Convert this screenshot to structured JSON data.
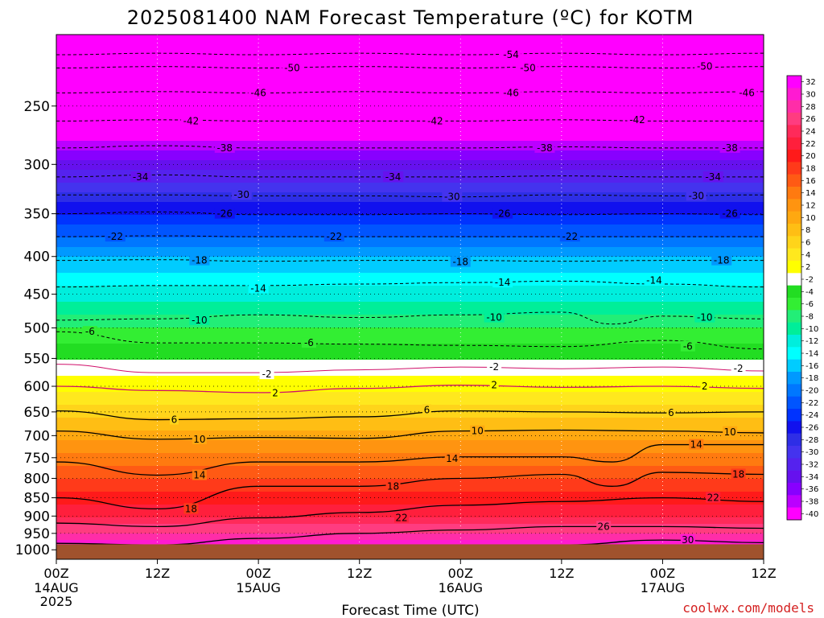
{
  "chart_data": {
    "type": "heatmap",
    "title": "2025081400 NAM Forecast Temperature (ºC) for KOTM",
    "xlabel": "Forecast Time (UTC)",
    "credit": "coolwx.com/models",
    "x_ticks": [
      {
        "hours": 0,
        "label": "00Z",
        "sub": "14AUG",
        "sub2": "2025"
      },
      {
        "hours": 12,
        "label": "12Z"
      },
      {
        "hours": 24,
        "label": "00Z",
        "sub": "15AUG"
      },
      {
        "hours": 36,
        "label": "12Z"
      },
      {
        "hours": 48,
        "label": "00Z",
        "sub": "16AUG"
      },
      {
        "hours": 60,
        "label": "12Z"
      },
      {
        "hours": 72,
        "label": "00Z",
        "sub": "17AUG"
      },
      {
        "hours": 84,
        "label": "12Z"
      }
    ],
    "xlim": [
      0,
      84
    ],
    "y_levels": [
      250,
      300,
      350,
      400,
      450,
      500,
      550,
      600,
      650,
      700,
      750,
      800,
      850,
      900,
      950,
      1000
    ],
    "ylim_hpa": [
      200,
      1030
    ],
    "y_scale": "log",
    "colorbar_labels": [
      32,
      30,
      28,
      26,
      24,
      22,
      20,
      18,
      16,
      14,
      12,
      10,
      8,
      6,
      4,
      2,
      -2,
      -4,
      -6,
      -8,
      -10,
      -12,
      -14,
      -16,
      -18,
      -20,
      -22,
      -24,
      -26,
      -28,
      -30,
      -32,
      -34,
      -36,
      -38,
      -40
    ],
    "colorbar_colors": [
      "#ff00ff",
      "#ff1ad2",
      "#ff2da8",
      "#ff3c80",
      "#ff2a5a",
      "#ff1f3c",
      "#ff1a1a",
      "#ff3a1a",
      "#ff5a14",
      "#ff7a10",
      "#ff9410",
      "#ffa810",
      "#ffbe14",
      "#ffd41a",
      "#ffe81e",
      "#ffff00",
      "#ffffff",
      "#22dd22",
      "#33ee33",
      "#22ee77",
      "#00ee99",
      "#00eedd",
      "#00ffff",
      "#00ccff",
      "#0099ff",
      "#0077ff",
      "#0055ff",
      "#0033ff",
      "#1111ee",
      "#2e2ee6",
      "#4433ee",
      "#5522ee",
      "#6611ee",
      "#8800ff",
      "#bb00ff",
      "#ff00ff"
    ],
    "ground_color": "#a0522d",
    "profile": [
      {
        "hpa": 210,
        "t": -58
      },
      {
        "hpa": 250,
        "t": -46
      },
      {
        "hpa": 300,
        "t": -34
      },
      {
        "hpa": 350,
        "t": -25
      },
      {
        "hpa": 400,
        "t": -17
      },
      {
        "hpa": 450,
        "t": -12
      },
      {
        "hpa": 500,
        "t": -7
      },
      {
        "hpa": 550,
        "t": -3
      },
      {
        "hpa": 580,
        "t": 0
      },
      {
        "hpa": 600,
        "t": 2
      },
      {
        "hpa": 650,
        "t": 6
      },
      {
        "hpa": 700,
        "t": 10
      },
      {
        "hpa": 750,
        "t": 14
      },
      {
        "hpa": 800,
        "t": 17
      },
      {
        "hpa": 850,
        "t": 20
      },
      {
        "hpa": 900,
        "t": 23
      },
      {
        "hpa": 950,
        "t": 27
      },
      {
        "hpa": 1000,
        "t": 32
      }
    ],
    "contours": [
      {
        "value": -54,
        "points": [
          [
            0,
            213
          ],
          [
            12,
            212
          ],
          [
            24,
            213
          ],
          [
            36,
            212
          ],
          [
            48,
            213
          ],
          [
            60,
            212
          ],
          [
            72,
            213
          ],
          [
            84,
            212
          ]
        ],
        "labels": [
          [
            54,
            213
          ]
        ]
      },
      {
        "value": -50,
        "points": [
          [
            0,
            222
          ],
          [
            12,
            221
          ],
          [
            24,
            222
          ],
          [
            36,
            221
          ],
          [
            48,
            222
          ],
          [
            60,
            221
          ],
          [
            72,
            222
          ],
          [
            84,
            221
          ]
        ],
        "labels": [
          [
            28,
            222
          ],
          [
            56,
            222
          ],
          [
            77,
            221
          ]
        ]
      },
      {
        "value": -46,
        "points": [
          [
            0,
            240
          ],
          [
            12,
            239
          ],
          [
            24,
            240
          ],
          [
            36,
            239
          ],
          [
            48,
            240
          ],
          [
            60,
            239
          ],
          [
            72,
            240
          ],
          [
            84,
            239
          ]
        ],
        "labels": [
          [
            24,
            240
          ],
          [
            54,
            240
          ],
          [
            82,
            240
          ]
        ]
      },
      {
        "value": -42,
        "points": [
          [
            0,
            262
          ],
          [
            12,
            261
          ],
          [
            24,
            262
          ],
          [
            36,
            262
          ],
          [
            48,
            262
          ],
          [
            60,
            261
          ],
          [
            72,
            262
          ],
          [
            84,
            262
          ]
        ],
        "labels": [
          [
            16,
            262
          ],
          [
            45,
            262
          ],
          [
            69,
            261
          ]
        ]
      },
      {
        "value": -38,
        "points": [
          [
            0,
            285
          ],
          [
            12,
            283
          ],
          [
            24,
            285
          ],
          [
            36,
            285
          ],
          [
            48,
            285
          ],
          [
            60,
            284
          ],
          [
            72,
            285
          ],
          [
            84,
            285
          ]
        ],
        "labels": [
          [
            20,
            285
          ],
          [
            58,
            285
          ],
          [
            80,
            285
          ]
        ]
      },
      {
        "value": -34,
        "points": [
          [
            0,
            312
          ],
          [
            12,
            310
          ],
          [
            24,
            312
          ],
          [
            36,
            312
          ],
          [
            48,
            312
          ],
          [
            60,
            311
          ],
          [
            72,
            312
          ],
          [
            84,
            312
          ]
        ],
        "labels": [
          [
            10,
            312
          ],
          [
            40,
            312
          ],
          [
            78,
            312
          ]
        ]
      },
      {
        "value": -30,
        "points": [
          [
            0,
            330
          ],
          [
            12,
            330
          ],
          [
            24,
            331
          ],
          [
            36,
            331
          ],
          [
            48,
            332
          ],
          [
            60,
            330
          ],
          [
            72,
            331
          ],
          [
            84,
            330
          ]
        ],
        "labels": [
          [
            22,
            330
          ],
          [
            47,
            332
          ],
          [
            76,
            331
          ]
        ]
      },
      {
        "value": -26,
        "points": [
          [
            0,
            350
          ],
          [
            12,
            348
          ],
          [
            24,
            351
          ],
          [
            36,
            351
          ],
          [
            48,
            350
          ],
          [
            60,
            351
          ],
          [
            72,
            350
          ],
          [
            84,
            351
          ]
        ],
        "labels": [
          [
            20,
            350
          ],
          [
            53,
            350
          ],
          [
            80,
            350
          ]
        ]
      },
      {
        "value": -22,
        "points": [
          [
            0,
            376
          ],
          [
            12,
            375
          ],
          [
            24,
            376
          ],
          [
            36,
            376
          ],
          [
            48,
            376
          ],
          [
            60,
            376
          ],
          [
            72,
            376
          ],
          [
            84,
            376
          ]
        ],
        "labels": [
          [
            7,
            376
          ],
          [
            33,
            376
          ],
          [
            61,
            376
          ]
        ]
      },
      {
        "value": -18,
        "points": [
          [
            0,
            405
          ],
          [
            12,
            404
          ],
          [
            24,
            406
          ],
          [
            36,
            405
          ],
          [
            48,
            405
          ],
          [
            60,
            406
          ],
          [
            72,
            405
          ],
          [
            84,
            405
          ]
        ],
        "labels": [
          [
            17,
            405
          ],
          [
            48,
            407
          ],
          [
            79,
            405
          ]
        ]
      },
      {
        "value": -14,
        "points": [
          [
            0,
            440
          ],
          [
            12,
            438
          ],
          [
            24,
            438
          ],
          [
            36,
            436
          ],
          [
            48,
            434
          ],
          [
            60,
            432
          ],
          [
            72,
            436
          ],
          [
            84,
            440
          ]
        ],
        "labels": [
          [
            24,
            442
          ],
          [
            53,
            434
          ],
          [
            71,
            431
          ]
        ]
      },
      {
        "value": -10,
        "points": [
          [
            0,
            488
          ],
          [
            12,
            486
          ],
          [
            24,
            480
          ],
          [
            36,
            484
          ],
          [
            48,
            480
          ],
          [
            60,
            476
          ],
          [
            66,
            494
          ],
          [
            72,
            482
          ],
          [
            84,
            486
          ]
        ],
        "labels": [
          [
            17,
            488
          ],
          [
            52,
            484
          ],
          [
            77,
            484
          ]
        ]
      },
      {
        "value": -6,
        "points": [
          [
            0,
            506
          ],
          [
            12,
            524
          ],
          [
            24,
            524
          ],
          [
            36,
            526
          ],
          [
            48,
            528
          ],
          [
            60,
            530
          ],
          [
            72,
            520
          ],
          [
            84,
            534
          ]
        ],
        "labels": [
          [
            4,
            506
          ],
          [
            30,
            524
          ],
          [
            75,
            530
          ]
        ]
      },
      {
        "value": -2,
        "points": [
          [
            0,
            560
          ],
          [
            12,
            575
          ],
          [
            24,
            575
          ],
          [
            36,
            570
          ],
          [
            48,
            565
          ],
          [
            60,
            568
          ],
          [
            72,
            565
          ],
          [
            84,
            572
          ]
        ],
        "labels": [
          [
            25,
            578
          ],
          [
            52,
            565
          ],
          [
            81,
            568
          ]
        ]
      },
      {
        "value": 2,
        "points": [
          [
            0,
            600
          ],
          [
            12,
            608
          ],
          [
            24,
            612
          ],
          [
            36,
            604
          ],
          [
            48,
            598
          ],
          [
            60,
            602
          ],
          [
            72,
            600
          ],
          [
            84,
            604
          ]
        ],
        "labels": [
          [
            26,
            613
          ],
          [
            52,
            598
          ],
          [
            77,
            600
          ]
        ]
      },
      {
        "value": 6,
        "points": [
          [
            0,
            648
          ],
          [
            12,
            666
          ],
          [
            24,
            664
          ],
          [
            36,
            660
          ],
          [
            48,
            648
          ],
          [
            60,
            650
          ],
          [
            72,
            652
          ],
          [
            84,
            650
          ]
        ],
        "labels": [
          [
            14,
            666
          ],
          [
            44,
            646
          ],
          [
            73,
            652
          ]
        ]
      },
      {
        "value": 10,
        "points": [
          [
            0,
            690
          ],
          [
            12,
            708
          ],
          [
            24,
            704
          ],
          [
            36,
            706
          ],
          [
            48,
            690
          ],
          [
            60,
            688
          ],
          [
            72,
            690
          ],
          [
            84,
            694
          ]
        ],
        "labels": [
          [
            17,
            708
          ],
          [
            50,
            690
          ],
          [
            80,
            692
          ]
        ]
      },
      {
        "value": 14,
        "points": [
          [
            0,
            760
          ],
          [
            12,
            792
          ],
          [
            24,
            760
          ],
          [
            36,
            760
          ],
          [
            48,
            748
          ],
          [
            60,
            748
          ],
          [
            66,
            760
          ],
          [
            72,
            720
          ],
          [
            84,
            720
          ]
        ],
        "labels": [
          [
            17,
            792
          ],
          [
            47,
            752
          ],
          [
            76,
            720
          ]
        ]
      },
      {
        "value": 18,
        "points": [
          [
            0,
            850
          ],
          [
            12,
            880
          ],
          [
            24,
            820
          ],
          [
            36,
            820
          ],
          [
            48,
            800
          ],
          [
            60,
            790
          ],
          [
            66,
            820
          ],
          [
            72,
            785
          ],
          [
            84,
            790
          ]
        ],
        "labels": [
          [
            16,
            880
          ],
          [
            40,
            820
          ],
          [
            81,
            790
          ]
        ]
      },
      {
        "value": 22,
        "points": [
          [
            0,
            920
          ],
          [
            12,
            930
          ],
          [
            24,
            905
          ],
          [
            36,
            890
          ],
          [
            48,
            870
          ],
          [
            60,
            860
          ],
          [
            72,
            850
          ],
          [
            84,
            860
          ]
        ],
        "labels": [
          [
            41,
            905
          ],
          [
            78,
            850
          ]
        ]
      },
      {
        "value": 26,
        "points": [
          [
            0,
            980
          ],
          [
            12,
            985
          ],
          [
            24,
            965
          ],
          [
            36,
            950
          ],
          [
            48,
            940
          ],
          [
            60,
            930
          ],
          [
            72,
            930
          ],
          [
            84,
            935
          ]
        ],
        "labels": [
          [
            65,
            930
          ]
        ]
      },
      {
        "value": 30,
        "points": [
          [
            36,
            1000
          ],
          [
            48,
            990
          ],
          [
            60,
            985
          ],
          [
            72,
            970
          ],
          [
            84,
            978
          ]
        ],
        "labels": [
          [
            75,
            970
          ]
        ]
      }
    ]
  }
}
